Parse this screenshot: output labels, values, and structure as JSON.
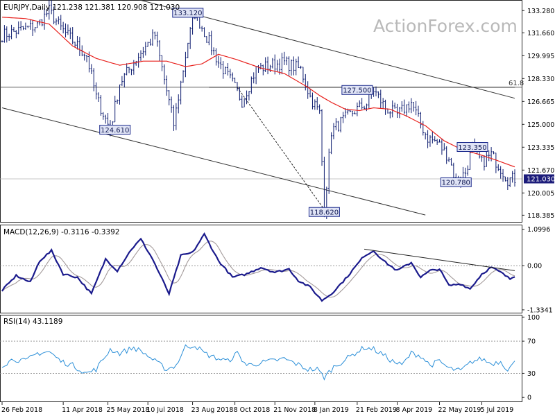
{
  "watermark": "ActionForex.com",
  "colors": {
    "price": "#0b1a6e",
    "sma": "#e8211d",
    "macd": "#1a1a8c",
    "signal": "#a39a9a",
    "rsi": "#2b8fd8",
    "trend": "#000000",
    "box_border": "#1c2a8c",
    "box_bg": "#dfe3f5",
    "last_box": "#1c1c7a"
  },
  "chart_data": [
    {
      "type": "line",
      "panel": "price",
      "title": "EURJPY,Daily  121.238 121.381 120.908 121.030",
      "y_ticks": [
        "133.280",
        "131.660",
        "129.995",
        "128.330",
        "126.665",
        "125.000",
        "123.335",
        "121.670",
        "120.005",
        "118.385"
      ],
      "ylim": [
        117.9,
        134.0
      ],
      "last_value": "121.030",
      "fib_label": "61.8",
      "fib_level": 127.7,
      "labels": [
        {
          "text": "133.120",
          "x": 79,
          "value": 133.12
        },
        {
          "text": "124.610",
          "x": 48,
          "value": 124.61
        },
        {
          "text": "127.500",
          "x": 151,
          "value": 127.5
        },
        {
          "text": "118.620",
          "x": 137,
          "value": 118.62
        },
        {
          "text": "123.350",
          "x": 200,
          "value": 123.35
        },
        {
          "text": "120.780",
          "x": 193,
          "value": 120.78
        }
      ],
      "close_anchors": [
        [
          0,
          131.5
        ],
        [
          15,
          132.2
        ],
        [
          20,
          133.3
        ],
        [
          25,
          132
        ],
        [
          36,
          130
        ],
        [
          40,
          127
        ],
        [
          46,
          124.6
        ],
        [
          50,
          128
        ],
        [
          58,
          130
        ],
        [
          65,
          131.5
        ],
        [
          73,
          125
        ],
        [
          79,
          131
        ],
        [
          82,
          133.1
        ],
        [
          88,
          131
        ],
        [
          92,
          129.5
        ],
        [
          98,
          128
        ],
        [
          102,
          126.7
        ],
        [
          108,
          129
        ],
        [
          114,
          129.3
        ],
        [
          120,
          129.5
        ],
        [
          127,
          129
        ],
        [
          131,
          127
        ],
        [
          135,
          125.8
        ],
        [
          137,
          118.8
        ],
        [
          140,
          124.5
        ],
        [
          145,
          125.3
        ],
        [
          150,
          126
        ],
        [
          155,
          126.5
        ],
        [
          158,
          127.5
        ],
        [
          163,
          126.2
        ],
        [
          168,
          125.7
        ],
        [
          174,
          126.6
        ],
        [
          178,
          125
        ],
        [
          181,
          124
        ],
        [
          185,
          123.7
        ],
        [
          190,
          122.6
        ],
        [
          193,
          120.8
        ],
        [
          197,
          121.5
        ],
        [
          200,
          123.3
        ],
        [
          204,
          122.2
        ],
        [
          208,
          122.8
        ],
        [
          212,
          121.8
        ],
        [
          215,
          121
        ],
        [
          218,
          121.03
        ]
      ],
      "sma_anchors": [
        [
          0,
          132.8
        ],
        [
          10,
          132.7
        ],
        [
          20,
          132.3
        ],
        [
          30,
          130.7
        ],
        [
          40,
          129.8
        ],
        [
          50,
          129.3
        ],
        [
          60,
          129.6
        ],
        [
          70,
          129.6
        ],
        [
          78,
          129.2
        ],
        [
          85,
          129.4
        ],
        [
          92,
          130.1
        ],
        [
          100,
          129.7
        ],
        [
          110,
          129.1
        ],
        [
          120,
          128.7
        ],
        [
          130,
          127.7
        ],
        [
          135,
          127.1
        ],
        [
          140,
          126.6
        ],
        [
          146,
          126.1
        ],
        [
          152,
          126
        ],
        [
          158,
          126.2
        ],
        [
          165,
          126.1
        ],
        [
          172,
          125.6
        ],
        [
          180,
          124.9
        ],
        [
          188,
          123.8
        ],
        [
          195,
          123.2
        ],
        [
          203,
          122.8
        ],
        [
          210,
          122.4
        ],
        [
          218,
          121.9
        ]
      ],
      "channel_upper": [
        [
          53,
          134.3
        ],
        [
          218,
          126.9
        ]
      ],
      "channel_lower": [
        [
          0,
          126.2
        ],
        [
          180,
          118.4
        ]
      ],
      "diagonal": [
        [
          100,
          127.7
        ],
        [
          137,
          118.8
        ]
      ],
      "horizontal_level": [
        [
          88,
          127.7
        ],
        [
          218,
          127.7
        ]
      ],
      "last_price_line": 121.03
    },
    {
      "type": "line",
      "panel": "macd",
      "title": "MACD(12,26,9) -0.3116 -0.3392",
      "y_ticks": [
        "1.0996",
        "0.00",
        "-1.3341"
      ],
      "ylim": [
        -1.42,
        1.22
      ],
      "anchors": [
        [
          0,
          -0.75
        ],
        [
          6,
          -0.3
        ],
        [
          12,
          -0.5
        ],
        [
          16,
          0.15
        ],
        [
          21,
          0.45
        ],
        [
          26,
          -0.25
        ],
        [
          32,
          -0.35
        ],
        [
          38,
          -0.85
        ],
        [
          44,
          0.2
        ],
        [
          49,
          -0.15
        ],
        [
          55,
          0.5
        ],
        [
          59,
          0.8
        ],
        [
          64,
          0.2
        ],
        [
          71,
          -0.85
        ],
        [
          76,
          0.3
        ],
        [
          81,
          0.4
        ],
        [
          86,
          0.95
        ],
        [
          92,
          0.15
        ],
        [
          98,
          -0.35
        ],
        [
          104,
          -0.25
        ],
        [
          110,
          -0.05
        ],
        [
          116,
          -0.2
        ],
        [
          122,
          -0.1
        ],
        [
          126,
          -0.45
        ],
        [
          131,
          -0.65
        ],
        [
          136,
          -1.05
        ],
        [
          140,
          -0.85
        ],
        [
          146,
          -0.4
        ],
        [
          150,
          -0.05
        ],
        [
          154,
          0.3
        ],
        [
          158,
          0.45
        ],
        [
          163,
          0.1
        ],
        [
          168,
          -0.15
        ],
        [
          174,
          0.1
        ],
        [
          178,
          -0.35
        ],
        [
          182,
          -0.15
        ],
        [
          186,
          -0.1
        ],
        [
          190,
          -0.6
        ],
        [
          195,
          -0.55
        ],
        [
          199,
          -0.7
        ],
        [
          204,
          -0.25
        ],
        [
          208,
          -0.05
        ],
        [
          212,
          -0.2
        ],
        [
          216,
          -0.4
        ],
        [
          218,
          -0.31
        ]
      ],
      "signal_lag": 3,
      "trendline": [
        [
          154,
          0.5
        ],
        [
          218,
          -0.15
        ]
      ]
    },
    {
      "type": "line",
      "panel": "rsi",
      "title": "RSI(14) 43.1189",
      "y_ticks": [
        "100",
        "70",
        "30",
        "0"
      ],
      "ylim": [
        -5,
        102
      ],
      "levels": [
        70,
        30
      ],
      "anchors": [
        [
          0,
          40
        ],
        [
          5,
          48
        ],
        [
          10,
          45
        ],
        [
          15,
          55
        ],
        [
          20,
          57
        ],
        [
          25,
          45
        ],
        [
          30,
          40
        ],
        [
          36,
          30
        ],
        [
          40,
          35
        ],
        [
          46,
          60
        ],
        [
          50,
          55
        ],
        [
          56,
          62
        ],
        [
          60,
          56
        ],
        [
          65,
          45
        ],
        [
          70,
          35
        ],
        [
          74,
          40
        ],
        [
          78,
          63
        ],
        [
          82,
          65
        ],
        [
          86,
          55
        ],
        [
          90,
          50
        ],
        [
          96,
          45
        ],
        [
          100,
          55
        ],
        [
          104,
          40
        ],
        [
          108,
          42
        ],
        [
          114,
          45
        ],
        [
          120,
          48
        ],
        [
          125,
          42
        ],
        [
          130,
          35
        ],
        [
          134,
          35
        ],
        [
          137,
          25
        ],
        [
          141,
          38
        ],
        [
          146,
          47
        ],
        [
          150,
          55
        ],
        [
          154,
          62
        ],
        [
          158,
          60
        ],
        [
          162,
          53
        ],
        [
          166,
          45
        ],
        [
          170,
          40
        ],
        [
          174,
          55
        ],
        [
          178,
          52
        ],
        [
          182,
          40
        ],
        [
          186,
          45
        ],
        [
          190,
          36
        ],
        [
          195,
          33
        ],
        [
          200,
          45
        ],
        [
          204,
          48
        ],
        [
          208,
          42
        ],
        [
          212,
          45
        ],
        [
          215,
          35
        ],
        [
          218,
          43.1
        ]
      ]
    }
  ],
  "x_axis": {
    "labels": [
      {
        "text": "26 Feb 2018",
        "x": 0
      },
      {
        "text": "11 Apr 2018",
        "x": 26
      },
      {
        "text": "25 May 2018",
        "x": 45
      },
      {
        "text": "10 Jul 2018",
        "x": 62
      },
      {
        "text": "23 Aug 2018",
        "x": 81
      },
      {
        "text": "8 Oct 2018",
        "x": 99
      },
      {
        "text": "21 Nov 2018",
        "x": 116
      },
      {
        "text": "8 Jan 2019",
        "x": 133
      },
      {
        "text": "21 Feb 2019",
        "x": 151
      },
      {
        "text": "8 Apr 2019",
        "x": 168
      },
      {
        "text": "22 May 2019",
        "x": 186
      },
      {
        "text": "5 Jul 2019",
        "x": 204
      }
    ]
  }
}
